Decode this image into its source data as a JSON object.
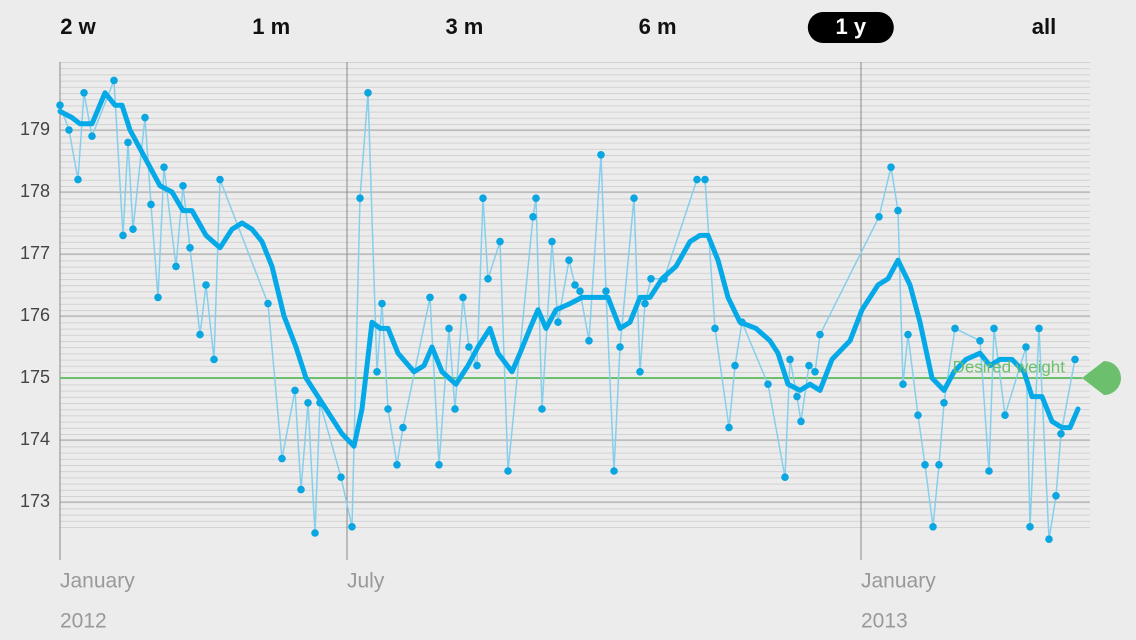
{
  "range_buttons": {
    "options": [
      "2 w",
      "1 m",
      "3 m",
      "6 m",
      "1 y",
      "all"
    ],
    "selected": 4
  },
  "chart_data": {
    "type": "line",
    "xlim": [
      0,
      103
    ],
    "ylim": [
      172.3,
      180.1
    ],
    "yticks": [
      173,
      174,
      175,
      176,
      177,
      178,
      179
    ],
    "xticks": [
      {
        "value": 0,
        "label": "January",
        "year": "2012"
      },
      {
        "value": 28.7,
        "label": "July"
      },
      {
        "value": 80.1,
        "label": "January",
        "year": "2013"
      }
    ],
    "grid": true,
    "target": {
      "value": 175,
      "label": "Desired weight",
      "color": "#6cbf6c"
    },
    "series": [
      {
        "color": "#0aa6e2",
        "line_color": "#86cfec",
        "markers": true,
        "x": [
          0,
          0.9,
          1.8,
          2.4,
          3.2,
          5.4,
          6.3,
          6.8,
          7.3,
          8.5,
          9.1,
          9.8,
          10.4,
          11.6,
          12.3,
          13,
          14,
          14.6,
          15.4,
          16,
          20.8,
          22.2,
          23.5,
          24.1,
          24.8,
          25.5,
          26,
          28.1,
          29.2,
          30,
          30.8,
          31.7,
          32.2,
          32.8,
          33.7,
          34.3,
          37,
          37.9,
          38.9,
          39.5,
          40.3,
          40.9,
          41.7,
          42.3,
          42.8,
          44,
          44.8,
          47.3,
          47.6,
          48.2,
          49.2,
          49.8,
          50.9,
          51.5,
          52,
          52.9,
          54.1,
          54.6,
          55.4,
          56,
          57.4,
          58,
          58.5,
          59.1,
          60.4,
          63.7,
          64.5,
          65.5,
          66.9,
          67.5,
          68.2,
          70.8,
          72.5,
          73,
          73.7,
          74.1,
          74.9,
          75.5,
          76,
          81.9,
          83.1,
          83.8,
          84.3,
          84.8,
          85.8,
          86.5,
          87.3,
          87.9,
          88.4,
          89.5,
          92,
          92.9,
          93.4,
          94.5,
          96.6,
          97,
          97.9,
          98.9,
          99.6,
          100.1,
          101.5
        ],
        "values": [
          179.4,
          179.0,
          178.2,
          179.6,
          178.9,
          179.8,
          177.3,
          178.8,
          177.4,
          179.2,
          177.8,
          176.3,
          178.4,
          176.8,
          178.1,
          177.1,
          175.7,
          176.5,
          175.3,
          178.2,
          176.2,
          173.7,
          174.8,
          173.2,
          174.6,
          172.5,
          174.6,
          173.4,
          172.6,
          177.9,
          179.6,
          175.1,
          176.2,
          174.5,
          173.6,
          174.2,
          176.3,
          173.6,
          175.8,
          174.5,
          176.3,
          175.5,
          175.2,
          177.9,
          176.6,
          177.2,
          173.5,
          177.6,
          177.9,
          174.5,
          177.2,
          175.9,
          176.9,
          176.5,
          176.4,
          175.6,
          178.6,
          176.4,
          173.5,
          175.5,
          177.9,
          175.1,
          176.2,
          176.6,
          176.6,
          178.2,
          178.2,
          175.8,
          174.2,
          175.2,
          175.9,
          174.9,
          173.4,
          175.3,
          174.7,
          174.3,
          175.2,
          175.1,
          175.7,
          177.6,
          178.4,
          177.7,
          174.9,
          175.7,
          174.4,
          173.6,
          172.6,
          173.6,
          174.6,
          175.8,
          175.6,
          173.5,
          175.8,
          174.4,
          175.5,
          172.6,
          175.8,
          172.4,
          173.1,
          174.1,
          175.3
        ]
      },
      {
        "color": "#05a9e8",
        "line_color": "#05a9e8",
        "markers": false,
        "x": [
          0,
          1.2,
          2,
          3.2,
          4.5,
          5.5,
          6.2,
          7,
          8,
          9,
          10,
          11.2,
          12.3,
          13.2,
          14.6,
          16,
          17.2,
          18.2,
          19.2,
          20.2,
          21.2,
          22.4,
          23.6,
          24.6,
          25.8,
          27,
          28.2,
          29.4,
          30.2,
          31.2,
          32,
          32.8,
          33.8,
          35.4,
          36.4,
          37.2,
          38.2,
          39.6,
          40.8,
          41.8,
          43,
          43.8,
          45.2,
          46,
          47,
          47.8,
          48.6,
          49.6,
          51,
          52.2,
          54,
          54.8,
          56,
          57,
          58,
          59,
          60.2,
          61.6,
          63,
          64,
          64.8,
          65.8,
          66.8,
          68,
          69.6,
          71,
          71.8,
          72.8,
          74,
          75,
          76,
          77.2,
          79,
          80.2,
          81.8,
          82.8,
          83.8,
          85,
          86,
          87.2,
          88.4,
          89.4,
          90.6,
          92,
          93,
          94,
          95.2,
          96.4,
          97.2,
          98.2,
          99.2,
          100.2,
          101,
          101.8
        ],
        "values": [
          179.3,
          179.2,
          179.1,
          179.1,
          179.6,
          179.4,
          179.4,
          179.0,
          178.7,
          178.4,
          178.1,
          178.0,
          177.7,
          177.7,
          177.3,
          177.1,
          177.4,
          177.5,
          177.4,
          177.2,
          176.8,
          176.0,
          175.5,
          175.0,
          174.7,
          174.4,
          174.1,
          173.9,
          174.5,
          175.9,
          175.8,
          175.8,
          175.4,
          175.1,
          175.2,
          175.5,
          175.1,
          174.9,
          175.2,
          175.5,
          175.8,
          175.4,
          175.1,
          175.4,
          175.8,
          176.1,
          175.8,
          176.1,
          176.2,
          176.3,
          176.3,
          176.3,
          175.8,
          175.9,
          176.3,
          176.3,
          176.6,
          176.8,
          177.2,
          177.3,
          177.3,
          176.9,
          176.3,
          175.9,
          175.8,
          175.6,
          175.4,
          174.9,
          174.8,
          174.9,
          174.8,
          175.3,
          175.6,
          176.1,
          176.5,
          176.6,
          176.9,
          176.5,
          175.9,
          175.0,
          174.8,
          175.1,
          175.3,
          175.4,
          175.2,
          175.3,
          175.3,
          175.1,
          174.7,
          174.7,
          174.3,
          174.2,
          174.2,
          174.5
        ]
      }
    ]
  }
}
